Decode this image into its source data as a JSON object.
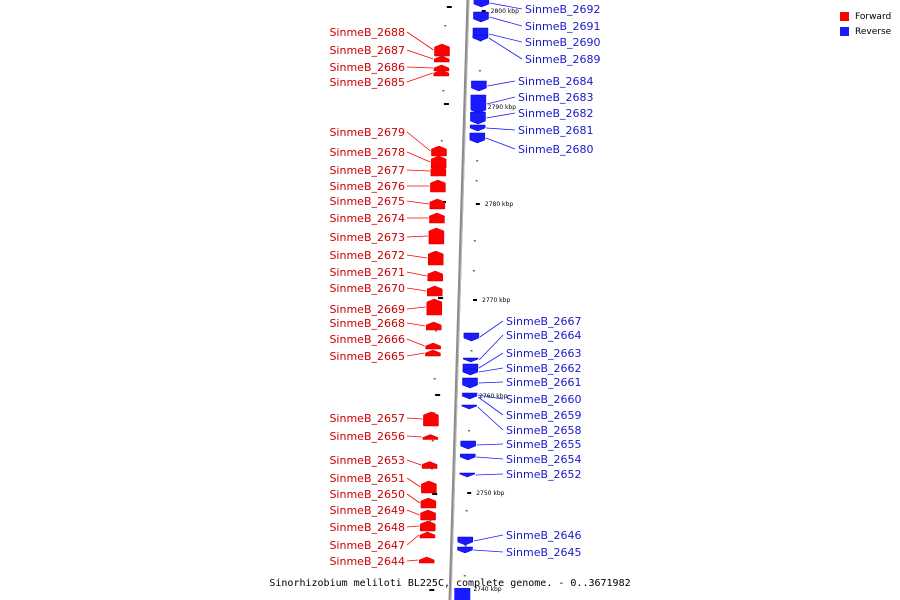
{
  "legend": {
    "forward_label": "Forward",
    "reverse_label": "Reverse",
    "forward_color": "#ff0000",
    "reverse_color": "#1a1aff"
  },
  "caption": "Sinorhizobium meliloti BL225C, complete genome. - 0..3671982",
  "scale": {
    "ticks": [
      "2800 kbp",
      "2790 kbp",
      "2780 kbp",
      "2770 kbp",
      "2760 kbp",
      "2750 kbp",
      "2740 kbp"
    ]
  },
  "forward_genes": [
    "SinmeB_2688",
    "SinmeB_2687",
    "SinmeB_2686",
    "SinmeB_2685",
    "SinmeB_2679",
    "SinmeB_2678",
    "SinmeB_2677",
    "SinmeB_2676",
    "SinmeB_2675",
    "SinmeB_2674",
    "SinmeB_2673",
    "SinmeB_2672",
    "SinmeB_2671",
    "SinmeB_2670",
    "SinmeB_2669",
    "SinmeB_2668",
    "SinmeB_2666",
    "SinmeB_2665",
    "SinmeB_2657",
    "SinmeB_2656",
    "SinmeB_2653",
    "SinmeB_2651",
    "SinmeB_2650",
    "SinmeB_2649",
    "SinmeB_2648",
    "SinmeB_2647",
    "SinmeB_2644"
  ],
  "reverse_genes": [
    "SinmeB_2692",
    "SinmeB_2691",
    "SinmeB_2690",
    "SinmeB_2689",
    "SinmeB_2684",
    "SinmeB_2683",
    "SinmeB_2682",
    "SinmeB_2681",
    "SinmeB_2680",
    "SinmeB_2667",
    "SinmeB_2664",
    "SinmeB_2663",
    "SinmeB_2662",
    "SinmeB_2661",
    "SinmeB_2660",
    "SinmeB_2659",
    "SinmeB_2658",
    "SinmeB_2655",
    "SinmeB_2654",
    "SinmeB_2652",
    "SinmeB_2646",
    "SinmeB_2645"
  ]
}
